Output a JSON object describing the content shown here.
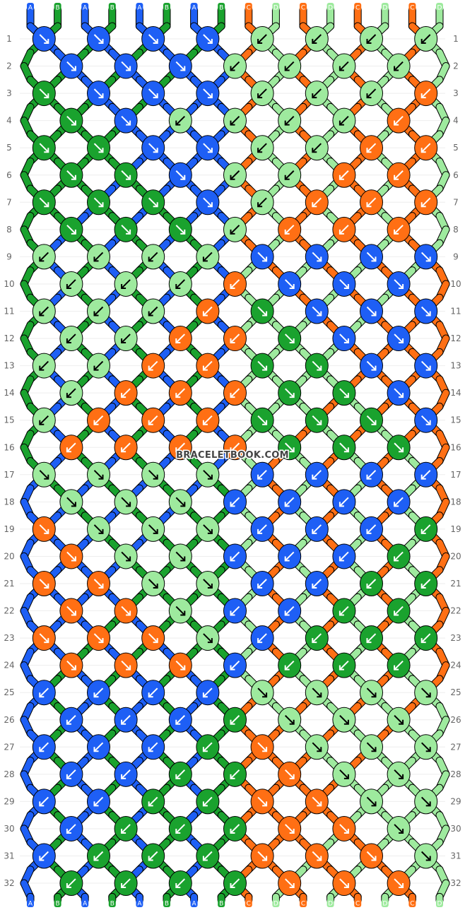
{
  "watermark": "BRACELETBOOK.COM",
  "colors": {
    "A": "#1E5FF5",
    "B": "#1AA22E",
    "C": "#FF6F14",
    "D": "#9EEA9E"
  },
  "string_labels": [
    "A",
    "B",
    "A",
    "B",
    "A",
    "B",
    "A",
    "B",
    "C",
    "D",
    "C",
    "D",
    "C",
    "D",
    "C",
    "D"
  ],
  "rows": [
    {
      "n": "1",
      "knots": [
        [
          "A",
          "f"
        ],
        [
          "A",
          "f"
        ],
        [
          "A",
          "f"
        ],
        [
          "A",
          "f"
        ],
        [
          "D",
          "b"
        ],
        [
          "D",
          "b"
        ],
        [
          "D",
          "b"
        ],
        [
          "D",
          "b"
        ]
      ]
    },
    {
      "n": "2",
      "knots": [
        [
          "A",
          "f"
        ],
        [
          "A",
          "f"
        ],
        [
          "A",
          "f"
        ],
        [
          "D",
          "b"
        ],
        [
          "D",
          "b"
        ],
        [
          "D",
          "b"
        ],
        [
          "D",
          "b"
        ]
      ]
    },
    {
      "n": "3",
      "knots": [
        [
          "B",
          "f"
        ],
        [
          "A",
          "f"
        ],
        [
          "A",
          "f"
        ],
        [
          "A",
          "f"
        ],
        [
          "D",
          "b"
        ],
        [
          "D",
          "b"
        ],
        [
          "D",
          "b"
        ],
        [
          "C",
          "b"
        ]
      ]
    },
    {
      "n": "4",
      "knots": [
        [
          "B",
          "f"
        ],
        [
          "A",
          "f"
        ],
        [
          "D",
          "b"
        ],
        [
          "D",
          "b"
        ],
        [
          "D",
          "b"
        ],
        [
          "D",
          "b"
        ],
        [
          "C",
          "b"
        ]
      ]
    },
    {
      "n": "5",
      "knots": [
        [
          "B",
          "f"
        ],
        [
          "B",
          "f"
        ],
        [
          "A",
          "f"
        ],
        [
          "A",
          "f"
        ],
        [
          "D",
          "b"
        ],
        [
          "D",
          "b"
        ],
        [
          "C",
          "b"
        ],
        [
          "C",
          "b"
        ]
      ]
    },
    {
      "n": "6",
      "knots": [
        [
          "B",
          "f"
        ],
        [
          "B",
          "f"
        ],
        [
          "A",
          "f"
        ],
        [
          "D",
          "b"
        ],
        [
          "D",
          "b"
        ],
        [
          "C",
          "b"
        ],
        [
          "C",
          "b"
        ]
      ]
    },
    {
      "n": "7",
      "knots": [
        [
          "B",
          "f"
        ],
        [
          "B",
          "f"
        ],
        [
          "B",
          "f"
        ],
        [
          "A",
          "f"
        ],
        [
          "D",
          "b"
        ],
        [
          "C",
          "b"
        ],
        [
          "C",
          "b"
        ],
        [
          "C",
          "b"
        ]
      ]
    },
    {
      "n": "8",
      "knots": [
        [
          "B",
          "f"
        ],
        [
          "B",
          "f"
        ],
        [
          "B",
          "f"
        ],
        [
          "D",
          "b"
        ],
        [
          "C",
          "b"
        ],
        [
          "C",
          "b"
        ],
        [
          "C",
          "b"
        ]
      ]
    },
    {
      "n": "9",
      "knots": [
        [
          "D",
          "b"
        ],
        [
          "D",
          "b"
        ],
        [
          "D",
          "b"
        ],
        [
          "D",
          "b"
        ],
        [
          "A",
          "f"
        ],
        [
          "A",
          "f"
        ],
        [
          "A",
          "f"
        ],
        [
          "A",
          "f"
        ]
      ]
    },
    {
      "n": "10",
      "knots": [
        [
          "D",
          "b"
        ],
        [
          "D",
          "b"
        ],
        [
          "D",
          "b"
        ],
        [
          "C",
          "b"
        ],
        [
          "A",
          "f"
        ],
        [
          "A",
          "f"
        ],
        [
          "A",
          "f"
        ]
      ]
    },
    {
      "n": "11",
      "knots": [
        [
          "D",
          "b"
        ],
        [
          "D",
          "b"
        ],
        [
          "D",
          "b"
        ],
        [
          "C",
          "b"
        ],
        [
          "B",
          "f"
        ],
        [
          "A",
          "f"
        ],
        [
          "A",
          "f"
        ],
        [
          "A",
          "f"
        ]
      ]
    },
    {
      "n": "12",
      "knots": [
        [
          "D",
          "b"
        ],
        [
          "D",
          "b"
        ],
        [
          "C",
          "b"
        ],
        [
          "C",
          "b"
        ],
        [
          "B",
          "f"
        ],
        [
          "A",
          "f"
        ],
        [
          "A",
          "f"
        ]
      ]
    },
    {
      "n": "13",
      "knots": [
        [
          "D",
          "b"
        ],
        [
          "D",
          "b"
        ],
        [
          "C",
          "b"
        ],
        [
          "C",
          "b"
        ],
        [
          "B",
          "f"
        ],
        [
          "B",
          "f"
        ],
        [
          "A",
          "f"
        ],
        [
          "A",
          "f"
        ]
      ]
    },
    {
      "n": "14",
      "knots": [
        [
          "D",
          "b"
        ],
        [
          "C",
          "b"
        ],
        [
          "C",
          "b"
        ],
        [
          "C",
          "b"
        ],
        [
          "B",
          "f"
        ],
        [
          "B",
          "f"
        ],
        [
          "A",
          "f"
        ]
      ]
    },
    {
      "n": "15",
      "knots": [
        [
          "D",
          "b"
        ],
        [
          "C",
          "b"
        ],
        [
          "C",
          "b"
        ],
        [
          "C",
          "b"
        ],
        [
          "B",
          "f"
        ],
        [
          "B",
          "f"
        ],
        [
          "B",
          "f"
        ],
        [
          "A",
          "f"
        ]
      ]
    },
    {
      "n": "16",
      "knots": [
        [
          "C",
          "b"
        ],
        [
          "C",
          "b"
        ],
        [
          "C",
          "b"
        ],
        [
          "C",
          "b"
        ],
        [
          "B",
          "f"
        ],
        [
          "B",
          "f"
        ],
        [
          "B",
          "f"
        ]
      ]
    },
    {
      "n": "17",
      "knots": [
        [
          "D",
          "f"
        ],
        [
          "D",
          "f"
        ],
        [
          "D",
          "f"
        ],
        [
          "D",
          "f"
        ],
        [
          "A",
          "b"
        ],
        [
          "A",
          "b"
        ],
        [
          "A",
          "b"
        ],
        [
          "A",
          "b"
        ]
      ]
    },
    {
      "n": "18",
      "knots": [
        [
          "D",
          "f"
        ],
        [
          "D",
          "f"
        ],
        [
          "D",
          "f"
        ],
        [
          "A",
          "b"
        ],
        [
          "A",
          "b"
        ],
        [
          "A",
          "b"
        ],
        [
          "A",
          "b"
        ]
      ]
    },
    {
      "n": "19",
      "knots": [
        [
          "C",
          "f"
        ],
        [
          "D",
          "f"
        ],
        [
          "D",
          "f"
        ],
        [
          "D",
          "f"
        ],
        [
          "A",
          "b"
        ],
        [
          "A",
          "b"
        ],
        [
          "A",
          "b"
        ],
        [
          "B",
          "b"
        ]
      ]
    },
    {
      "n": "20",
      "knots": [
        [
          "C",
          "f"
        ],
        [
          "D",
          "f"
        ],
        [
          "D",
          "f"
        ],
        [
          "A",
          "b"
        ],
        [
          "A",
          "b"
        ],
        [
          "A",
          "b"
        ],
        [
          "B",
          "b"
        ]
      ]
    },
    {
      "n": "21",
      "knots": [
        [
          "C",
          "f"
        ],
        [
          "C",
          "f"
        ],
        [
          "D",
          "f"
        ],
        [
          "D",
          "f"
        ],
        [
          "A",
          "b"
        ],
        [
          "A",
          "b"
        ],
        [
          "B",
          "b"
        ],
        [
          "B",
          "b"
        ]
      ]
    },
    {
      "n": "22",
      "knots": [
        [
          "C",
          "f"
        ],
        [
          "C",
          "f"
        ],
        [
          "D",
          "f"
        ],
        [
          "A",
          "b"
        ],
        [
          "A",
          "b"
        ],
        [
          "B",
          "b"
        ],
        [
          "B",
          "b"
        ]
      ]
    },
    {
      "n": "23",
      "knots": [
        [
          "C",
          "f"
        ],
        [
          "C",
          "f"
        ],
        [
          "C",
          "f"
        ],
        [
          "D",
          "f"
        ],
        [
          "A",
          "b"
        ],
        [
          "B",
          "b"
        ],
        [
          "B",
          "b"
        ],
        [
          "B",
          "b"
        ]
      ]
    },
    {
      "n": "24",
      "knots": [
        [
          "C",
          "f"
        ],
        [
          "C",
          "f"
        ],
        [
          "C",
          "f"
        ],
        [
          "A",
          "b"
        ],
        [
          "B",
          "b"
        ],
        [
          "B",
          "b"
        ],
        [
          "B",
          "b"
        ]
      ]
    },
    {
      "n": "25",
      "knots": [
        [
          "A",
          "b"
        ],
        [
          "A",
          "b"
        ],
        [
          "A",
          "b"
        ],
        [
          "A",
          "b"
        ],
        [
          "D",
          "f"
        ],
        [
          "D",
          "f"
        ],
        [
          "D",
          "f"
        ],
        [
          "D",
          "f"
        ]
      ]
    },
    {
      "n": "26",
      "knots": [
        [
          "A",
          "b"
        ],
        [
          "A",
          "b"
        ],
        [
          "A",
          "b"
        ],
        [
          "B",
          "b"
        ],
        [
          "D",
          "f"
        ],
        [
          "D",
          "f"
        ],
        [
          "D",
          "f"
        ]
      ]
    },
    {
      "n": "27",
      "knots": [
        [
          "A",
          "b"
        ],
        [
          "A",
          "b"
        ],
        [
          "A",
          "b"
        ],
        [
          "B",
          "b"
        ],
        [
          "C",
          "f"
        ],
        [
          "D",
          "f"
        ],
        [
          "D",
          "f"
        ],
        [
          "D",
          "f"
        ]
      ]
    },
    {
      "n": "28",
      "knots": [
        [
          "A",
          "b"
        ],
        [
          "A",
          "b"
        ],
        [
          "B",
          "b"
        ],
        [
          "B",
          "b"
        ],
        [
          "C",
          "f"
        ],
        [
          "D",
          "f"
        ],
        [
          "D",
          "f"
        ]
      ]
    },
    {
      "n": "29",
      "knots": [
        [
          "A",
          "b"
        ],
        [
          "A",
          "b"
        ],
        [
          "B",
          "b"
        ],
        [
          "B",
          "b"
        ],
        [
          "C",
          "f"
        ],
        [
          "C",
          "f"
        ],
        [
          "D",
          "f"
        ],
        [
          "D",
          "f"
        ]
      ]
    },
    {
      "n": "30",
      "knots": [
        [
          "A",
          "b"
        ],
        [
          "B",
          "b"
        ],
        [
          "B",
          "b"
        ],
        [
          "B",
          "b"
        ],
        [
          "C",
          "f"
        ],
        [
          "C",
          "f"
        ],
        [
          "D",
          "f"
        ]
      ]
    },
    {
      "n": "31",
      "knots": [
        [
          "A",
          "b"
        ],
        [
          "B",
          "b"
        ],
        [
          "B",
          "b"
        ],
        [
          "B",
          "b"
        ],
        [
          "C",
          "f"
        ],
        [
          "C",
          "f"
        ],
        [
          "C",
          "f"
        ],
        [
          "D",
          "f"
        ]
      ]
    },
    {
      "n": "32",
      "knots": [
        [
          "B",
          "b"
        ],
        [
          "B",
          "b"
        ],
        [
          "B",
          "b"
        ],
        [
          "B",
          "b"
        ],
        [
          "C",
          "f"
        ],
        [
          "C",
          "f"
        ],
        [
          "C",
          "f"
        ]
      ]
    }
  ]
}
